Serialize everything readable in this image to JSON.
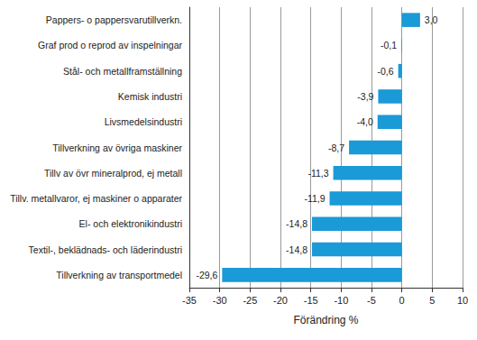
{
  "chart_data": {
    "type": "bar",
    "orientation": "horizontal",
    "categories": [
      "Pappers- o pappersvarutillverkn.",
      "Graf prod o reprod av inspelningar",
      "Stål- och metallframställning",
      "Kemisk industri",
      "Livsmedelsindustri",
      "Tillverkning av övriga maskiner",
      "Tillv av övr mineralprod, ej metall",
      "Tillv. metallvaror, ej maskiner o apparater",
      "El- och elektronikindustri",
      "Textil-, beklädnads- och läderindustri",
      "Tillverkning av transportmedel"
    ],
    "values": [
      3.0,
      -0.1,
      -0.6,
      -3.9,
      -4.0,
      -8.7,
      -11.3,
      -11.9,
      -14.8,
      -14.8,
      -29.6
    ],
    "value_labels": [
      "3,0",
      "-0,1",
      "-0,6",
      "-3,9",
      "-4,0",
      "-8,7",
      "-11,3",
      "-11,9",
      "-14,8",
      "-14,8",
      "-29,6"
    ],
    "color": "#1a9ad7",
    "xlabel": "Förändring %",
    "xlim": [
      -35,
      10
    ],
    "xticks": [
      -35,
      -30,
      -25,
      -20,
      -15,
      -10,
      -5,
      0,
      5,
      10
    ],
    "grid": true,
    "data_labels": true
  }
}
